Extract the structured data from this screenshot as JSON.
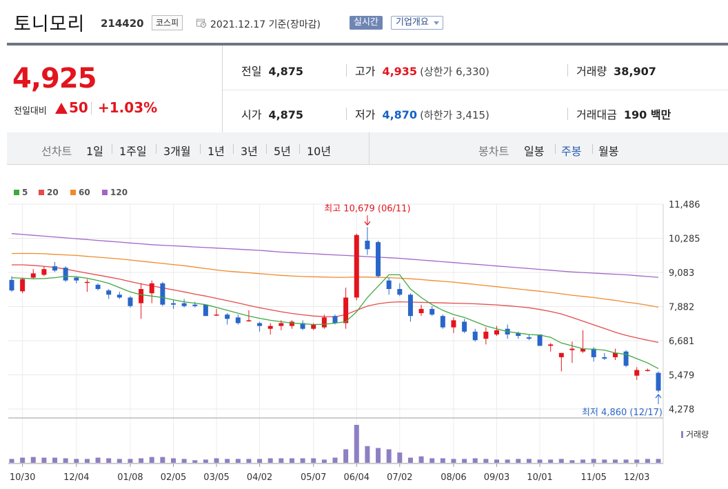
{
  "header": {
    "stock_name": "토니모리",
    "stock_code": "214420",
    "market": "코스피",
    "date": "2021.12.17 기준(장마감)",
    "realtime_button": "실시간",
    "company_button": "기업개요"
  },
  "price": {
    "current": "4,925",
    "change_label": "전일대비",
    "change": "50",
    "change_rate": "+1.03%",
    "stats": {
      "prev_close_label": "전일",
      "prev_close": "4,875",
      "high_label": "고가",
      "high": "4,935",
      "upper_limit": "(상한가 6,330)",
      "volume_label": "거래량",
      "volume": "38,907",
      "open_label": "시가",
      "open": "4,875",
      "low_label": "저가",
      "low": "4,870",
      "lower_limit": "(하한가 3,415)",
      "amount_label": "거래대금",
      "amount": "190 백만"
    }
  },
  "tabs": {
    "line_label": "선차트",
    "line_items": [
      "1일",
      "1주일",
      "3개월",
      "1년",
      "3년",
      "5년",
      "10년"
    ],
    "candle_label": "봉차트",
    "candle_items": [
      "일봉",
      "주봉",
      "월봉"
    ],
    "active_candle": "주봉"
  },
  "colors": {
    "up": "#e3141d",
    "down": "#2a66c9",
    "ma5": "#3fa83f",
    "ma20": "#e64a4a",
    "ma60": "#f08a2a",
    "ma120": "#a065c8",
    "volume": "#8e7fc4"
  },
  "chart_data": {
    "type": "candlestick",
    "interval": "weekly",
    "legend": [
      {
        "name": "5",
        "color": "#3fa83f"
      },
      {
        "name": "20",
        "color": "#e64a4a"
      },
      {
        "name": "60",
        "color": "#f08a2a"
      },
      {
        "name": "120",
        "color": "#a065c8"
      }
    ],
    "y_ticks": [
      "11,486",
      "10,285",
      "9,083",
      "7,882",
      "6,681",
      "5,479",
      "4,278"
    ],
    "y_tick_values": [
      11486,
      10285,
      9083,
      7882,
      6681,
      5479,
      4278
    ],
    "ylim": [
      4278,
      11486
    ],
    "x_ticks": [
      "10/30",
      "12/04",
      "01/08",
      "02/05",
      "03/05",
      "04/02",
      "05/07",
      "06/04",
      "07/02",
      "08/06",
      "09/03",
      "10/01",
      "11/05",
      "12/03"
    ],
    "x_tick_index": [
      1,
      6,
      11,
      15,
      19,
      23,
      28,
      32,
      36,
      41,
      45,
      49,
      54,
      58
    ],
    "annotations": {
      "high": "최고 10,679 (06/11)",
      "high_index": 33,
      "high_value": 10679,
      "low": "최저 4,860 (12/17)",
      "low_index": 60,
      "low_value": 4860
    },
    "volume_label": "거래량",
    "candles": [
      {
        "o": 8820,
        "h": 8950,
        "l": 8400,
        "c": 8450
      },
      {
        "o": 8420,
        "h": 8900,
        "l": 8350,
        "c": 8850
      },
      {
        "o": 8900,
        "h": 9200,
        "l": 8850,
        "c": 9050
      },
      {
        "o": 9000,
        "h": 9300,
        "l": 8950,
        "c": 9200
      },
      {
        "o": 9300,
        "h": 9450,
        "l": 9100,
        "c": 9150
      },
      {
        "o": 9250,
        "h": 9300,
        "l": 8750,
        "c": 8800
      },
      {
        "o": 8900,
        "h": 8950,
        "l": 8700,
        "c": 8800
      },
      {
        "o": 8750,
        "h": 8850,
        "l": 8400,
        "c": 8750
      },
      {
        "o": 8650,
        "h": 8700,
        "l": 8450,
        "c": 8500
      },
      {
        "o": 8450,
        "h": 8500,
        "l": 8150,
        "c": 8300
      },
      {
        "o": 8300,
        "h": 8400,
        "l": 8150,
        "c": 8200
      },
      {
        "o": 8200,
        "h": 8250,
        "l": 7850,
        "c": 7900
      },
      {
        "o": 8000,
        "h": 8700,
        "l": 7450,
        "c": 8500
      },
      {
        "o": 8350,
        "h": 8800,
        "l": 8000,
        "c": 8700
      },
      {
        "o": 8700,
        "h": 8750,
        "l": 7900,
        "c": 7950
      },
      {
        "o": 8000,
        "h": 8100,
        "l": 7800,
        "c": 7950
      },
      {
        "o": 8000,
        "h": 8150,
        "l": 7850,
        "c": 7900
      },
      {
        "o": 7950,
        "h": 8050,
        "l": 7850,
        "c": 7900
      },
      {
        "o": 7950,
        "h": 7950,
        "l": 7550,
        "c": 7550
      },
      {
        "o": 7600,
        "h": 7800,
        "l": 7550,
        "c": 7600
      },
      {
        "o": 7600,
        "h": 7650,
        "l": 7250,
        "c": 7450
      },
      {
        "o": 7500,
        "h": 7600,
        "l": 7250,
        "c": 7300
      },
      {
        "o": 7400,
        "h": 7750,
        "l": 7350,
        "c": 7400
      },
      {
        "o": 7300,
        "h": 7350,
        "l": 7000,
        "c": 7200
      },
      {
        "o": 7100,
        "h": 7300,
        "l": 6900,
        "c": 7200
      },
      {
        "o": 7200,
        "h": 7400,
        "l": 7050,
        "c": 7300
      },
      {
        "o": 7200,
        "h": 7400,
        "l": 7100,
        "c": 7350
      },
      {
        "o": 7300,
        "h": 7400,
        "l": 7050,
        "c": 7100
      },
      {
        "o": 7100,
        "h": 7300,
        "l": 7050,
        "c": 7250
      },
      {
        "o": 7150,
        "h": 7600,
        "l": 7100,
        "c": 7500
      },
      {
        "o": 7550,
        "h": 7600,
        "l": 7250,
        "c": 7300
      },
      {
        "o": 7300,
        "h": 8550,
        "l": 7100,
        "c": 8200
      },
      {
        "o": 8200,
        "h": 10450,
        "l": 8100,
        "c": 10400
      },
      {
        "o": 10200,
        "h": 10679,
        "l": 9700,
        "c": 9900
      },
      {
        "o": 10150,
        "h": 10200,
        "l": 8900,
        "c": 8950
      },
      {
        "o": 8800,
        "h": 8900,
        "l": 8300,
        "c": 8500
      },
      {
        "o": 8500,
        "h": 8700,
        "l": 8250,
        "c": 8300
      },
      {
        "o": 8300,
        "h": 8350,
        "l": 7350,
        "c": 7550
      },
      {
        "o": 7650,
        "h": 7950,
        "l": 7550,
        "c": 7800
      },
      {
        "o": 7800,
        "h": 7900,
        "l": 7550,
        "c": 7600
      },
      {
        "o": 7550,
        "h": 7600,
        "l": 7100,
        "c": 7150
      },
      {
        "o": 7150,
        "h": 7500,
        "l": 6950,
        "c": 7400
      },
      {
        "o": 7350,
        "h": 7450,
        "l": 6950,
        "c": 7000
      },
      {
        "o": 7000,
        "h": 7100,
        "l": 6650,
        "c": 6700
      },
      {
        "o": 6750,
        "h": 7150,
        "l": 6550,
        "c": 7000
      },
      {
        "o": 6900,
        "h": 7200,
        "l": 6850,
        "c": 7050
      },
      {
        "o": 7100,
        "h": 7250,
        "l": 6750,
        "c": 6900
      },
      {
        "o": 6950,
        "h": 7000,
        "l": 6750,
        "c": 6850
      },
      {
        "o": 6800,
        "h": 6900,
        "l": 6700,
        "c": 6750
      },
      {
        "o": 6900,
        "h": 6900,
        "l": 6500,
        "c": 6500
      },
      {
        "o": 6500,
        "h": 6600,
        "l": 6300,
        "c": 6550
      },
      {
        "o": 6100,
        "h": 6250,
        "l": 5600,
        "c": 6250
      },
      {
        "o": 6350,
        "h": 6650,
        "l": 5900,
        "c": 6400
      },
      {
        "o": 6300,
        "h": 7050,
        "l": 6250,
        "c": 6400
      },
      {
        "o": 6400,
        "h": 6450,
        "l": 5950,
        "c": 6100
      },
      {
        "o": 6100,
        "h": 6250,
        "l": 6000,
        "c": 6050
      },
      {
        "o": 6100,
        "h": 6400,
        "l": 6000,
        "c": 6250
      },
      {
        "o": 6300,
        "h": 6350,
        "l": 5750,
        "c": 5800
      },
      {
        "o": 5450,
        "h": 5750,
        "l": 5300,
        "c": 5650
      },
      {
        "o": 5650,
        "h": 5700,
        "l": 5600,
        "c": 5650
      },
      {
        "o": 5550,
        "h": 5600,
        "l": 4860,
        "c": 4925
      }
    ],
    "ma5": [
      8900,
      8880,
      8860,
      8870,
      8900,
      8950,
      8930,
      8880,
      8800,
      8700,
      8550,
      8400,
      8300,
      8250,
      8200,
      8120,
      8050,
      8000,
      7950,
      7850,
      7750,
      7650,
      7550,
      7470,
      7400,
      7350,
      7300,
      7280,
      7250,
      7260,
      7300,
      7350,
      7700,
      8200,
      8600,
      9000,
      9000,
      8500,
      8200,
      7950,
      7750,
      7600,
      7500,
      7350,
      7200,
      7100,
      7000,
      6950,
      6900,
      6880,
      6800,
      6600,
      6500,
      6400,
      6380,
      6350,
      6250,
      6200,
      6050,
      5900,
      5700
    ],
    "ma20": [
      9350,
      9350,
      9330,
      9300,
      9260,
      9200,
      9130,
      9060,
      8990,
      8920,
      8850,
      8760,
      8680,
      8610,
      8540,
      8470,
      8400,
      8320,
      8250,
      8170,
      8090,
      8010,
      7920,
      7840,
      7770,
      7700,
      7640,
      7590,
      7550,
      7530,
      7520,
      7600,
      7750,
      7900,
      7980,
      8030,
      8050,
      8040,
      8030,
      8020,
      8010,
      8000,
      7990,
      7980,
      7960,
      7940,
      7910,
      7880,
      7840,
      7780,
      7710,
      7620,
      7500,
      7370,
      7240,
      7110,
      6980,
      6870,
      6780,
      6700,
      6620
    ],
    "ma60": [
      9750,
      9750,
      9750,
      9740,
      9720,
      9700,
      9680,
      9650,
      9620,
      9590,
      9560,
      9520,
      9480,
      9440,
      9400,
      9360,
      9320,
      9270,
      9220,
      9170,
      9130,
      9100,
      9070,
      9040,
      9010,
      8980,
      8960,
      8940,
      8930,
      8920,
      8910,
      8910,
      8920,
      8920,
      8910,
      8900,
      8880,
      8860,
      8830,
      8800,
      8770,
      8740,
      8700,
      8660,
      8620,
      8580,
      8540,
      8500,
      8460,
      8420,
      8380,
      8330,
      8280,
      8240,
      8200,
      8150,
      8100,
      8040,
      7990,
      7930,
      7860
    ],
    "ma120": [
      10450,
      10420,
      10390,
      10360,
      10330,
      10300,
      10270,
      10240,
      10210,
      10180,
      10150,
      10120,
      10090,
      10060,
      10040,
      10020,
      10000,
      9980,
      9960,
      9940,
      9920,
      9900,
      9880,
      9860,
      9830,
      9800,
      9780,
      9760,
      9740,
      9720,
      9700,
      9680,
      9660,
      9640,
      9620,
      9600,
      9580,
      9550,
      9520,
      9490,
      9460,
      9430,
      9400,
      9370,
      9340,
      9310,
      9280,
      9250,
      9220,
      9190,
      9160,
      9130,
      9100,
      9080,
      9060,
      9040,
      9020,
      9000,
      8970,
      8940,
      8910
    ],
    "volume": [
      6,
      8,
      9,
      8,
      8,
      7,
      6,
      6,
      8,
      7,
      6,
      6,
      7,
      9,
      9,
      7,
      6,
      4,
      5,
      7,
      6,
      6,
      6,
      6,
      7,
      7,
      7,
      7,
      7,
      5,
      8,
      21,
      59,
      26,
      23,
      21,
      16,
      8,
      10,
      7,
      7,
      6,
      6,
      7,
      6,
      5,
      5,
      6,
      6,
      5,
      5,
      6,
      4,
      5,
      6,
      5,
      5,
      5,
      5,
      6,
      6
    ]
  }
}
